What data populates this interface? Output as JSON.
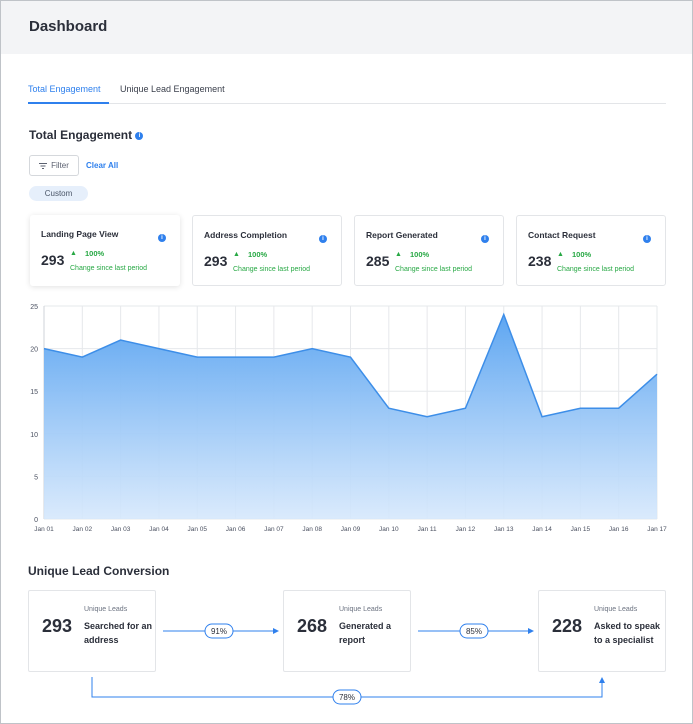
{
  "page_title": "Dashboard",
  "tabs": [
    {
      "label": "Total Engagement",
      "active": true
    },
    {
      "label": "Unique Lead Engagement",
      "active": false
    }
  ],
  "section_title": "Total Engagement",
  "filter_label": "Filter",
  "clear_all_label": "Clear All",
  "date_range_label": "Custom",
  "cards": [
    {
      "title": "Landing Page View",
      "value": "293",
      "change": "100%",
      "change_label": "Change since last period"
    },
    {
      "title": "Address Completion",
      "value": "293",
      "change": "100%",
      "change_label": "Change since last period"
    },
    {
      "title": "Report Generated",
      "value": "285",
      "change": "100%",
      "change_label": "Change since last period"
    },
    {
      "title": "Contact Request",
      "value": "238",
      "change": "100%",
      "change_label": "Change since last period"
    }
  ],
  "colors": {
    "accent": "#2f80ed",
    "positive": "#27a844",
    "area_fill": "#6aaef2"
  },
  "chart_data": {
    "type": "area",
    "categories": [
      "Jan 01",
      "Jan 02",
      "Jan 03",
      "Jan 04",
      "Jan 05",
      "Jan 06",
      "Jan 07",
      "Jan 08",
      "Jan 09",
      "Jan 10",
      "Jan 11",
      "Jan 12",
      "Jan 13",
      "Jan 14",
      "Jan 15",
      "Jan 16",
      "Jan 17"
    ],
    "values": [
      20,
      19,
      21,
      20,
      19,
      19,
      19,
      20,
      19,
      13,
      12,
      13,
      24,
      12,
      13,
      13,
      17
    ],
    "y_ticks": [
      "0",
      "5",
      "10",
      "15",
      "20",
      "25"
    ],
    "ylim": [
      0,
      25
    ],
    "grid": true
  },
  "conversion": {
    "title": "Unique Lead Conversion",
    "steps": [
      {
        "label": "Unique Leads",
        "value": "293",
        "description": "Searched for an address"
      },
      {
        "label": "Unique Leads",
        "value": "268",
        "description": "Generated a report"
      },
      {
        "label": "Unique Leads",
        "value": "228",
        "description": "Asked to speak to a specialist"
      }
    ],
    "rates": [
      "91%",
      "85%"
    ],
    "overall_rate": "78%"
  }
}
